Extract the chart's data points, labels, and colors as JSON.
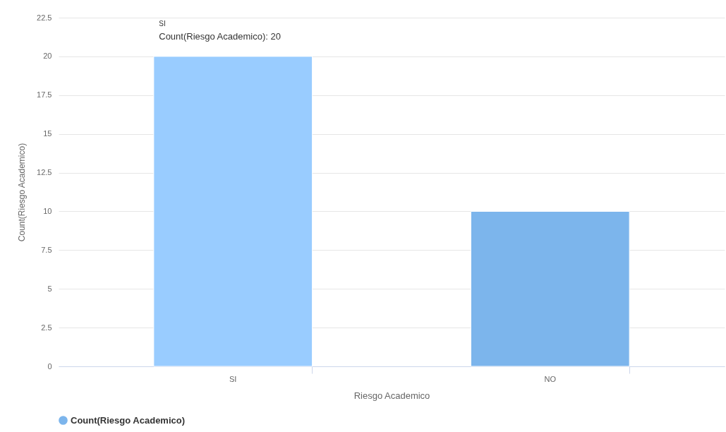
{
  "chart_data": {
    "type": "bar",
    "xlabel": "Riesgo Academico",
    "ylabel": "Count(Riesgo Academico)",
    "categories": [
      "SI",
      "NO"
    ],
    "series": [
      {
        "name": "Count(Riesgo Academico)",
        "color": "#7cb5ec",
        "colors": [
          "#99ccff",
          "#7cb5ec"
        ],
        "values": [
          20,
          10
        ]
      }
    ],
    "ylim": [
      0,
      22.5
    ],
    "yticks": [
      0,
      2.5,
      5,
      7.5,
      10,
      12.5,
      15,
      17.5,
      20,
      22.5
    ],
    "grid": "y",
    "legend": "bottom",
    "annotations": [
      "SI",
      {
        "text": "Count(Riesgo Academico): 20",
        "x": "SI",
        "y": 20
      }
    ]
  }
}
